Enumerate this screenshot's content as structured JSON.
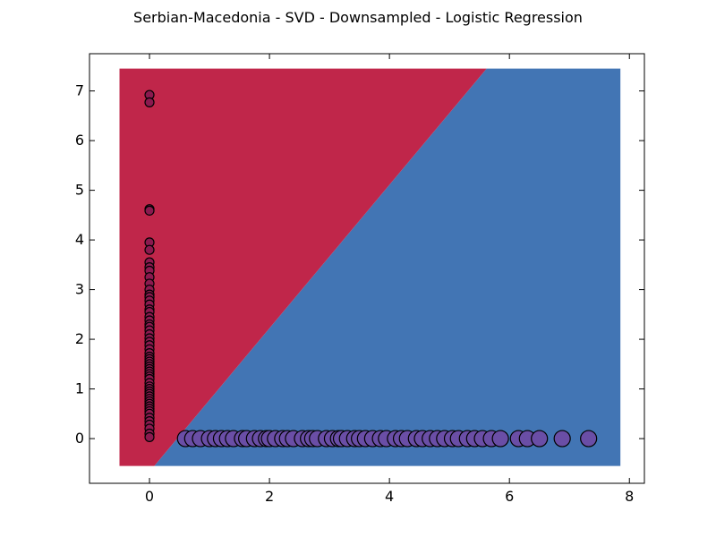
{
  "chart_data": {
    "type": "scatter",
    "title": "Serbian-Macedonia - SVD - Downsampled - Logistic Regression",
    "xlabel": "",
    "ylabel": "",
    "xlim": [
      -1,
      8.25
    ],
    "ylim": [
      -0.9,
      7.75
    ],
    "x_ticks": [
      "0",
      "2",
      "4",
      "6",
      "8"
    ],
    "y_ticks": [
      "0",
      "1",
      "2",
      "3",
      "4",
      "5",
      "6",
      "7"
    ],
    "grid": false,
    "legend": "none",
    "decision_region": {
      "extent_x": [
        -0.5,
        7.85
      ],
      "extent_y": [
        -0.55,
        7.45
      ],
      "boundary": [
        [
          0.08,
          -0.55
        ],
        [
          5.62,
          7.45
        ]
      ],
      "class_colors": {
        "class_0": "#C0264A",
        "class_1": "#4275B4"
      }
    },
    "series": [
      {
        "marker_color": "#8B1A4F",
        "marker_size": "small",
        "x": [
          0,
          0,
          0,
          0,
          0,
          0,
          0,
          0,
          0,
          0,
          0,
          0,
          0,
          0,
          0,
          0,
          0,
          0,
          0,
          0,
          0,
          0,
          0,
          0,
          0,
          0,
          0,
          0,
          0,
          0,
          0,
          0,
          0,
          0,
          0,
          0,
          0,
          0,
          0,
          0,
          0,
          0,
          0,
          0,
          0,
          0,
          0,
          0,
          0,
          0,
          0,
          0,
          0,
          0,
          0,
          0,
          0,
          0
        ],
        "y": [
          6.92,
          6.77,
          4.62,
          4.59,
          3.95,
          3.8,
          3.55,
          3.45,
          3.38,
          3.25,
          3.12,
          3.0,
          2.9,
          2.85,
          2.78,
          2.7,
          2.6,
          2.55,
          2.45,
          2.38,
          2.3,
          2.25,
          2.18,
          2.1,
          2.02,
          1.95,
          1.88,
          1.8,
          1.72,
          1.65,
          1.6,
          1.55,
          1.5,
          1.45,
          1.4,
          1.35,
          1.3,
          1.25,
          1.2,
          1.12,
          1.05,
          1.0,
          0.95,
          0.9,
          0.85,
          0.8,
          0.75,
          0.7,
          0.65,
          0.6,
          0.55,
          0.5,
          0.42,
          0.35,
          0.28,
          0.2,
          0.1,
          0.03
        ]
      },
      {
        "marker_color": "#6A4EA6",
        "marker_size": "large",
        "x": [
          0.6,
          0.72,
          0.85,
          1.0,
          1.1,
          1.2,
          1.3,
          1.4,
          1.55,
          1.62,
          1.75,
          1.85,
          1.95,
          2.0,
          2.1,
          2.22,
          2.3,
          2.4,
          2.55,
          2.65,
          2.72,
          2.8,
          2.95,
          3.05,
          3.15,
          3.2,
          3.3,
          3.42,
          3.5,
          3.6,
          3.72,
          3.85,
          3.95,
          4.1,
          4.2,
          4.3,
          4.45,
          4.55,
          4.68,
          4.8,
          4.92,
          5.05,
          5.15,
          5.3,
          5.42,
          5.55,
          5.7,
          5.85,
          6.15,
          6.3,
          6.5,
          6.88,
          7.32
        ],
        "y": [
          0,
          0,
          0,
          0,
          0,
          0,
          0,
          0,
          0,
          0,
          0,
          0,
          0,
          0,
          0,
          0,
          0,
          0,
          0,
          0,
          0,
          0,
          0,
          0,
          0,
          0,
          0,
          0,
          0,
          0,
          0,
          0,
          0,
          0,
          0,
          0,
          0,
          0,
          0,
          0,
          0,
          0,
          0,
          0,
          0,
          0,
          0,
          0,
          0,
          0,
          0,
          0,
          0
        ]
      }
    ]
  }
}
